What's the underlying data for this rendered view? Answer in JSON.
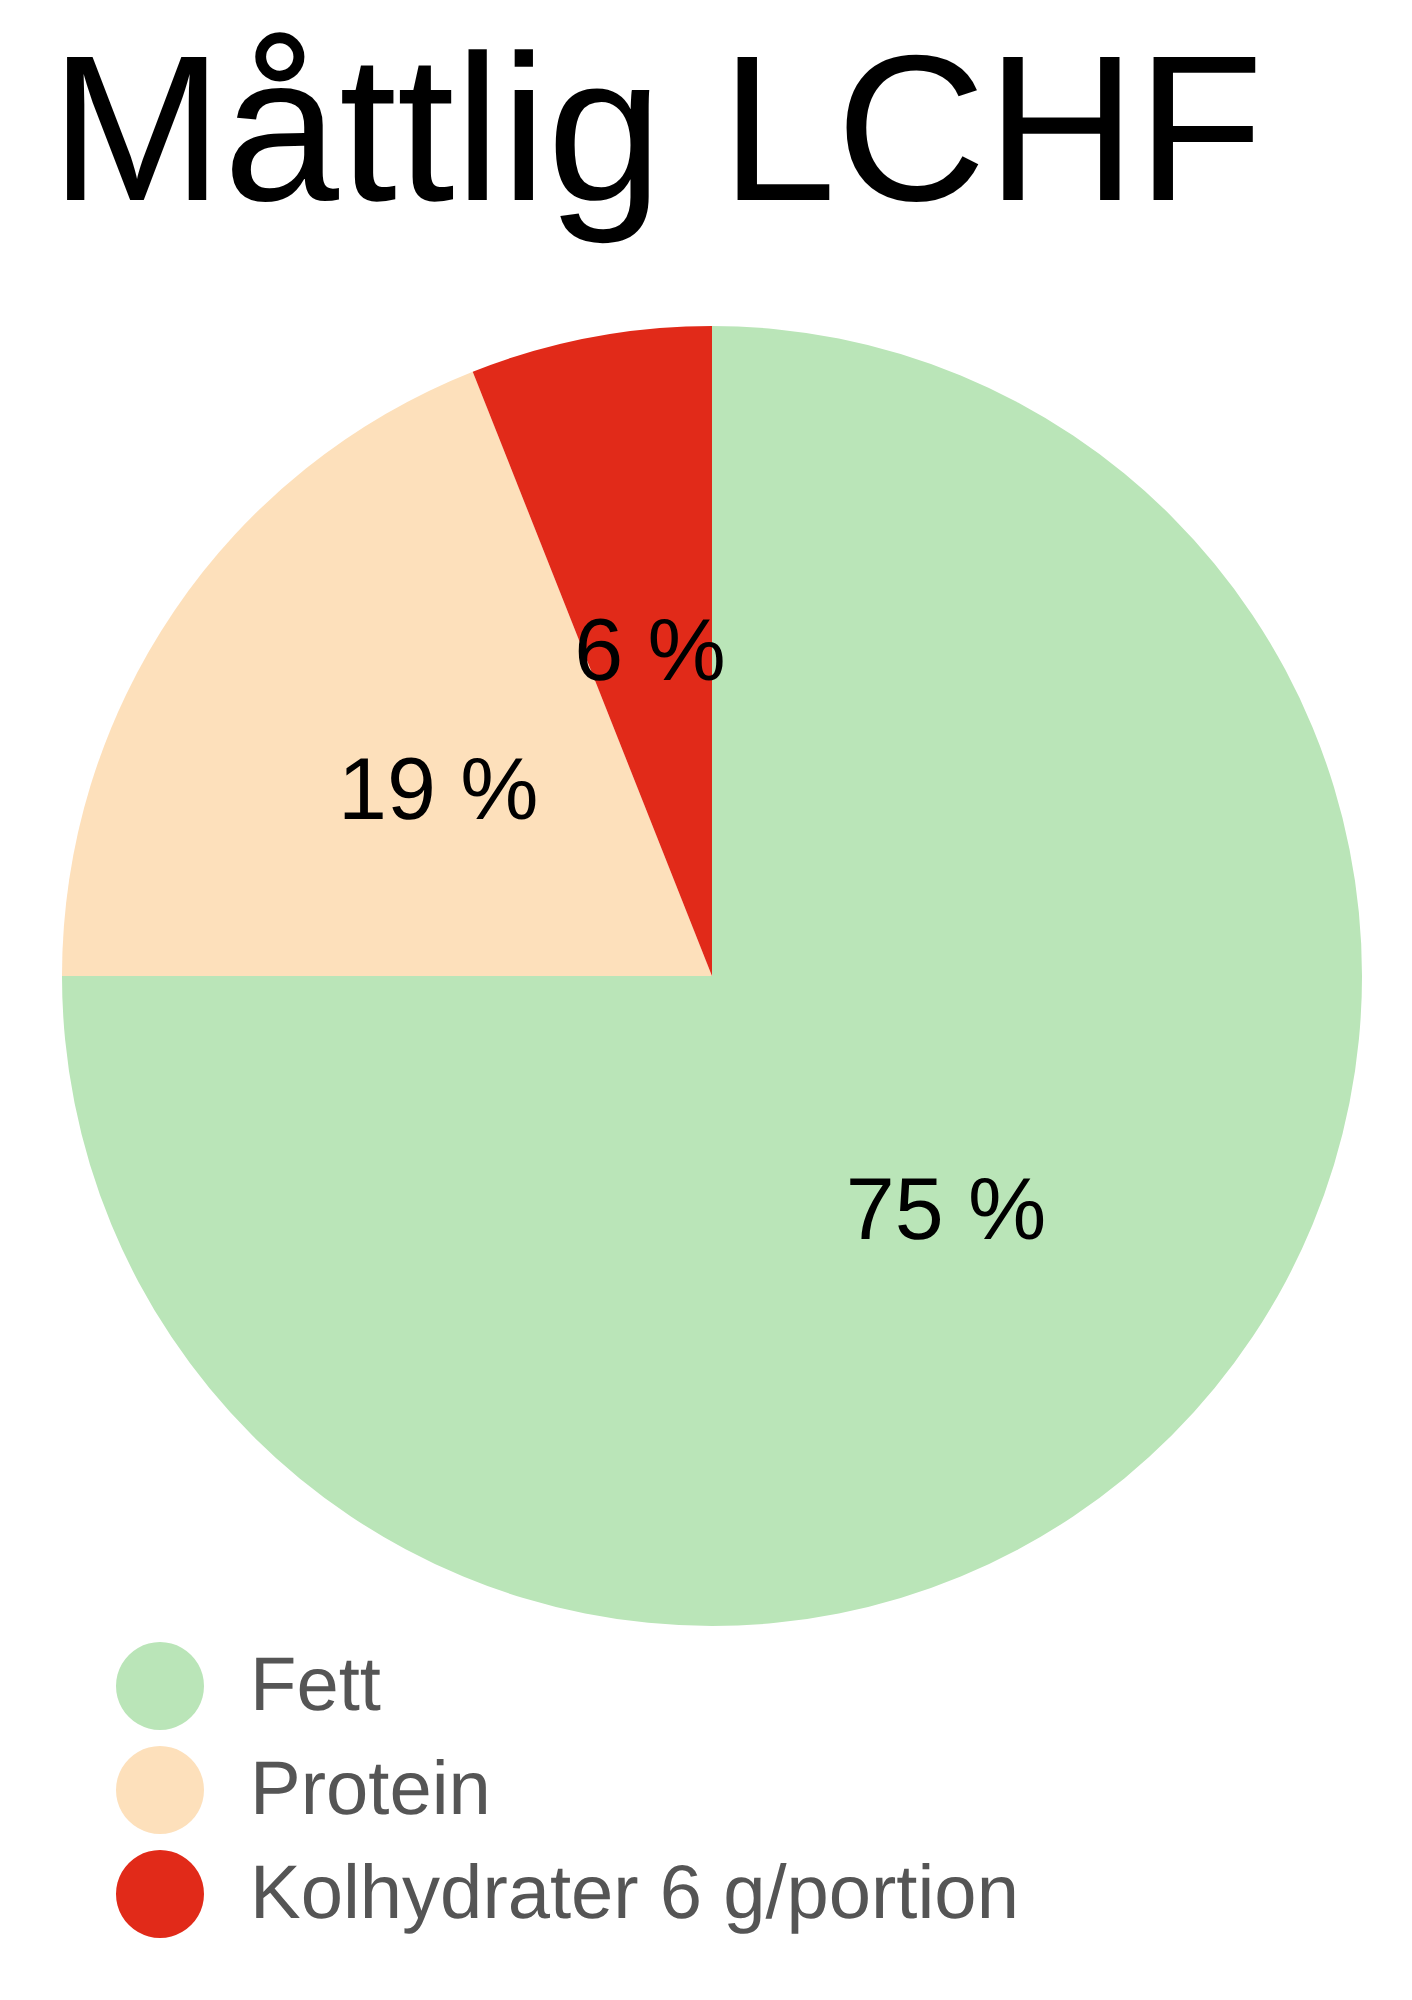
{
  "chart_data": {
    "type": "pie",
    "title": "Måttlig LCHF",
    "categories": [
      "Fett",
      "Protein",
      "Kolhydrater 6 g/portion"
    ],
    "values": [
      75,
      19,
      6
    ],
    "colors": [
      "#bae5b8",
      "#fde0bb",
      "#e12a19"
    ],
    "value_labels": [
      "75 %",
      "19 %",
      "6 %"
    ],
    "legend": "bottom left"
  }
}
